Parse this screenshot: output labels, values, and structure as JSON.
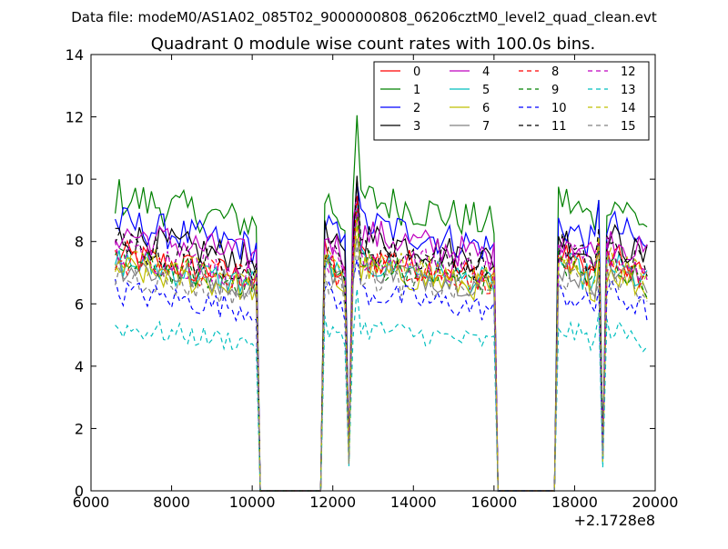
{
  "suptitle": "Data file: modeM0/AS1A02_085T02_9000000808_06206cztM0_level2_quad_clean.evt",
  "chart_data": {
    "type": "line",
    "title": "Quadrant 0 module wise count rates with 100.0s bins.",
    "xlabel": "",
    "ylabel": "",
    "x_offset_label": "+2.1728e8",
    "xlim": [
      6000,
      20000
    ],
    "ylim": [
      0,
      14
    ],
    "x_ticks": [
      6000,
      8000,
      10000,
      12000,
      14000,
      16000,
      18000,
      20000
    ],
    "y_ticks": [
      0,
      2,
      4,
      6,
      8,
      10,
      12,
      14
    ],
    "legend_position": "top-right",
    "legend_columns": 4,
    "segments": [
      [
        6600,
        10100
      ],
      [
        11800,
        12300
      ],
      [
        12500,
        16000
      ],
      [
        17600,
        18600
      ],
      [
        18800,
        19800
      ]
    ],
    "dips": [
      {
        "x": 12400,
        "fraction": 0.12
      },
      {
        "x": 18700,
        "fraction": 0.12
      }
    ],
    "spikes": [
      {
        "x": 12600,
        "factor": 1.2
      },
      {
        "x": 18600,
        "factor": 1.15
      }
    ],
    "series": [
      {
        "name": "0",
        "color": "#ff0000",
        "dash": "solid",
        "level": 7.2
      },
      {
        "name": "1",
        "color": "#008000",
        "dash": "solid",
        "level": 9.0
      },
      {
        "name": "2",
        "color": "#0000ff",
        "dash": "solid",
        "level": 8.2
      },
      {
        "name": "3",
        "color": "#000000",
        "dash": "solid",
        "level": 7.8
      },
      {
        "name": "4",
        "color": "#bf00bf",
        "dash": "solid",
        "level": 7.9
      },
      {
        "name": "5",
        "color": "#00bfbf",
        "dash": "solid",
        "level": 7.0
      },
      {
        "name": "6",
        "color": "#bfbf00",
        "dash": "solid",
        "level": 6.8
      },
      {
        "name": "7",
        "color": "#808080",
        "dash": "solid",
        "level": 6.9
      },
      {
        "name": "8",
        "color": "#ff0000",
        "dash": "dashed",
        "level": 7.1
      },
      {
        "name": "9",
        "color": "#008000",
        "dash": "dashed",
        "level": 7.0
      },
      {
        "name": "10",
        "color": "#0000ff",
        "dash": "dashed",
        "level": 6.1
      },
      {
        "name": "11",
        "color": "#000000",
        "dash": "dashed",
        "level": 7.5
      },
      {
        "name": "12",
        "color": "#bf00bf",
        "dash": "dashed",
        "level": 7.3
      },
      {
        "name": "13",
        "color": "#00bfbf",
        "dash": "dashed",
        "level": 5.0
      },
      {
        "name": "14",
        "color": "#bfbf00",
        "dash": "dashed",
        "level": 7.1
      },
      {
        "name": "15",
        "color": "#808080",
        "dash": "dashed",
        "level": 6.6
      }
    ]
  }
}
